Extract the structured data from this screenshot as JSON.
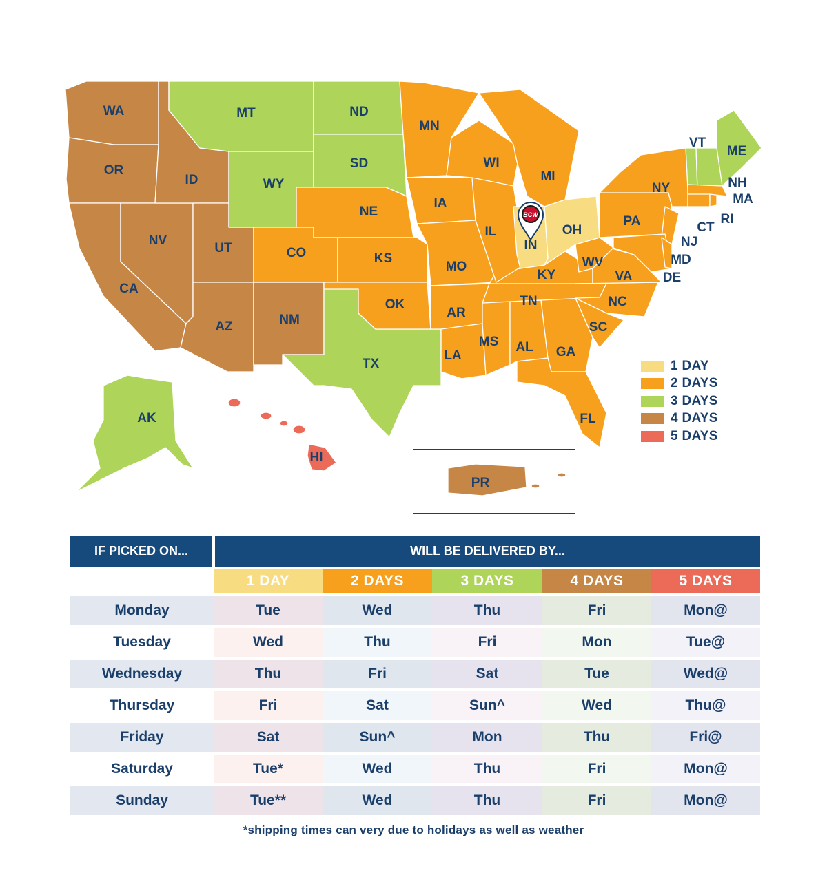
{
  "map": {
    "state_labels": {
      "WA": "WA",
      "OR": "OR",
      "CA": "CA",
      "NV": "NV",
      "ID": "ID",
      "MT": "MT",
      "WY": "WY",
      "UT": "UT",
      "AZ": "AZ",
      "CO": "CO",
      "NM": "NM",
      "ND": "ND",
      "SD": "SD",
      "NE": "NE",
      "KS": "KS",
      "OK": "OK",
      "TX": "TX",
      "MN": "MN",
      "IA": "IA",
      "MO": "MO",
      "AR": "AR",
      "LA": "LA",
      "WI": "WI",
      "IL": "IL",
      "MI": "MI",
      "IN": "IN",
      "OH": "OH",
      "KY": "KY",
      "TN": "TN",
      "MS": "MS",
      "AL": "AL",
      "GA": "GA",
      "FL": "FL",
      "SC": "SC",
      "NC": "NC",
      "VA": "VA",
      "WV": "WV",
      "PA": "PA",
      "NY": "NY",
      "VT": "VT",
      "NH": "NH",
      "ME": "ME",
      "MA": "MA",
      "RI": "RI",
      "CT": "CT",
      "NJ": "NJ",
      "DE": "DE",
      "MD": "MD",
      "AK": "AK",
      "HI": "HI",
      "PR": "PR"
    },
    "origin_marker": "BCW",
    "zone_colors": {
      "1": "#f8dc82",
      "2": "#f6a01e",
      "3": "#aed559",
      "4": "#c68645",
      "5": "#ec6a58"
    },
    "state_zones": {
      "IN": 1,
      "OH": 1,
      "MN": 2,
      "WI": 2,
      "MI": 2,
      "IA": 2,
      "IL": 2,
      "MO": 2,
      "KS": 2,
      "NE": 2,
      "CO": 2,
      "OK": 2,
      "AR": 2,
      "LA": 2,
      "MS": 2,
      "AL": 2,
      "GA": 2,
      "TN": 2,
      "KY": 2,
      "WV": 2,
      "VA": 2,
      "NC": 2,
      "SC": 2,
      "FL": 2,
      "PA": 2,
      "NY": 2,
      "NJ": 2,
      "MD": 2,
      "DE": 2,
      "CT": 2,
      "RI": 2,
      "MA": 2,
      "MT": 3,
      "ND": 3,
      "SD": 3,
      "WY": 3,
      "TX": 3,
      "VT": 3,
      "NH": 3,
      "ME": 3,
      "AK": 3,
      "WA": 4,
      "OR": 4,
      "NV": 4,
      "UT": 4,
      "AZ": 4,
      "NM": 4,
      "CA": 4,
      "ID": 4,
      "PR": 4,
      "HI": 5
    }
  },
  "legend": [
    {
      "label": "1 DAY",
      "color": "#f8dc82"
    },
    {
      "label": "2 DAYS",
      "color": "#f6a01e"
    },
    {
      "label": "3 DAYS",
      "color": "#aed559"
    },
    {
      "label": "4 DAYS",
      "color": "#c68645"
    },
    {
      "label": "5 DAYS",
      "color": "#ec6a58"
    }
  ],
  "table": {
    "pick_header": "IF PICKED ON...",
    "deliver_header": "WILL BE DELIVERED BY...",
    "columns": [
      {
        "label": "1 DAY",
        "color": "#f8dc82"
      },
      {
        "label": "2 DAYS",
        "color": "#f6a01e"
      },
      {
        "label": "3 DAYS",
        "color": "#aed559"
      },
      {
        "label": "4 DAYS",
        "color": "#c68645"
      },
      {
        "label": "5 DAYS",
        "color": "#ec6a58"
      }
    ],
    "rows": [
      {
        "day": "Monday",
        "values": [
          "Tue",
          "Wed",
          "Thu",
          "Fri",
          "Mon@"
        ]
      },
      {
        "day": "Tuesday",
        "values": [
          "Wed",
          "Thu",
          "Fri",
          "Mon",
          "Tue@"
        ]
      },
      {
        "day": "Wednesday",
        "values": [
          "Thu",
          "Fri",
          "Sat",
          "Tue",
          "Wed@"
        ]
      },
      {
        "day": "Thursday",
        "values": [
          "Fri",
          "Sat",
          "Sun^",
          "Wed",
          "Thu@"
        ]
      },
      {
        "day": "Friday",
        "values": [
          "Sat",
          "Sun^",
          "Mon",
          "Thu",
          "Fri@"
        ]
      },
      {
        "day": "Saturday",
        "values": [
          "Tue*",
          "Wed",
          "Thu",
          "Fri",
          "Mon@"
        ]
      },
      {
        "day": "Sunday",
        "values": [
          "Tue**",
          "Wed",
          "Thu",
          "Fri",
          "Mon@"
        ]
      }
    ],
    "row_colors": {
      "shaded": [
        "#e3e8f0",
        "#efe3ea",
        "#dfe6ee",
        "#e6e3ee",
        "#e6ebe0",
        "#e2e4ee"
      ],
      "light": [
        "#ffffff",
        "#fdf1ef",
        "#f1f6fa",
        "#f9f3f7",
        "#f2f7ef",
        "#f3f2f9"
      ]
    }
  },
  "footnote": "*shipping times can very due to holidays as well as weather"
}
